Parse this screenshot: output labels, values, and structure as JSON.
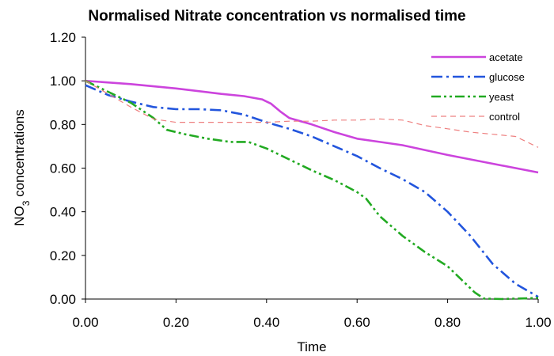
{
  "chart_data": {
    "type": "line",
    "title": "Normalised Nitrate concentration vs normalised time",
    "xlabel": "Time",
    "ylabel": "NO3 concentrations",
    "ylabel_parts": {
      "pre": "NO",
      "sub": "3",
      "post": " concentrations"
    },
    "xlim": [
      0,
      1
    ],
    "ylim": [
      0,
      1.2
    ],
    "xticks": [
      "0.00",
      "0.20",
      "0.40",
      "0.60",
      "0.80",
      "1.00"
    ],
    "yticks": [
      "0.00",
      "0.20",
      "0.40",
      "0.60",
      "0.80",
      "1.00",
      "1.20"
    ],
    "grid": false,
    "legend_position": "top-right",
    "series": [
      {
        "name": "acetate",
        "color": "#cc44dd",
        "dash": "solid",
        "points": [
          [
            0.0,
            1.0
          ],
          [
            0.1,
            0.985
          ],
          [
            0.2,
            0.965
          ],
          [
            0.3,
            0.94
          ],
          [
            0.35,
            0.93
          ],
          [
            0.39,
            0.915
          ],
          [
            0.41,
            0.895
          ],
          [
            0.43,
            0.86
          ],
          [
            0.45,
            0.83
          ],
          [
            0.5,
            0.8
          ],
          [
            0.55,
            0.765
          ],
          [
            0.6,
            0.735
          ],
          [
            0.65,
            0.72
          ],
          [
            0.7,
            0.705
          ],
          [
            0.8,
            0.66
          ],
          [
            0.9,
            0.62
          ],
          [
            1.0,
            0.58
          ]
        ]
      },
      {
        "name": "glucose",
        "color": "#2255dd",
        "dash": "dashdot",
        "points": [
          [
            0.0,
            0.98
          ],
          [
            0.05,
            0.935
          ],
          [
            0.1,
            0.905
          ],
          [
            0.15,
            0.88
          ],
          [
            0.2,
            0.87
          ],
          [
            0.25,
            0.87
          ],
          [
            0.3,
            0.865
          ],
          [
            0.35,
            0.845
          ],
          [
            0.4,
            0.81
          ],
          [
            0.45,
            0.78
          ],
          [
            0.5,
            0.745
          ],
          [
            0.55,
            0.7
          ],
          [
            0.6,
            0.655
          ],
          [
            0.65,
            0.6
          ],
          [
            0.7,
            0.55
          ],
          [
            0.75,
            0.49
          ],
          [
            0.8,
            0.4
          ],
          [
            0.85,
            0.29
          ],
          [
            0.9,
            0.16
          ],
          [
            0.95,
            0.07
          ],
          [
            1.0,
            0.01
          ]
        ]
      },
      {
        "name": "yeast",
        "color": "#22aa22",
        "dash": "dashdotdot",
        "points": [
          [
            0.0,
            1.0
          ],
          [
            0.05,
            0.95
          ],
          [
            0.1,
            0.9
          ],
          [
            0.15,
            0.83
          ],
          [
            0.18,
            0.775
          ],
          [
            0.22,
            0.755
          ],
          [
            0.27,
            0.735
          ],
          [
            0.32,
            0.72
          ],
          [
            0.36,
            0.72
          ],
          [
            0.4,
            0.69
          ],
          [
            0.45,
            0.64
          ],
          [
            0.5,
            0.59
          ],
          [
            0.55,
            0.545
          ],
          [
            0.6,
            0.49
          ],
          [
            0.62,
            0.46
          ],
          [
            0.65,
            0.38
          ],
          [
            0.7,
            0.29
          ],
          [
            0.75,
            0.215
          ],
          [
            0.8,
            0.15
          ],
          [
            0.83,
            0.09
          ],
          [
            0.86,
            0.03
          ],
          [
            0.88,
            0.002
          ],
          [
            0.92,
            0.0
          ],
          [
            1.0,
            0.005
          ]
        ]
      },
      {
        "name": "control",
        "color": "#ee8080",
        "dash": "dashed",
        "points": [
          [
            0.0,
            1.0
          ],
          [
            0.05,
            0.94
          ],
          [
            0.1,
            0.88
          ],
          [
            0.15,
            0.825
          ],
          [
            0.2,
            0.81
          ],
          [
            0.25,
            0.81
          ],
          [
            0.3,
            0.81
          ],
          [
            0.35,
            0.81
          ],
          [
            0.4,
            0.81
          ],
          [
            0.45,
            0.815
          ],
          [
            0.5,
            0.815
          ],
          [
            0.55,
            0.82
          ],
          [
            0.6,
            0.82
          ],
          [
            0.65,
            0.825
          ],
          [
            0.7,
            0.82
          ],
          [
            0.75,
            0.795
          ],
          [
            0.8,
            0.78
          ],
          [
            0.85,
            0.765
          ],
          [
            0.9,
            0.755
          ],
          [
            0.95,
            0.745
          ],
          [
            1.0,
            0.695
          ]
        ]
      }
    ]
  }
}
